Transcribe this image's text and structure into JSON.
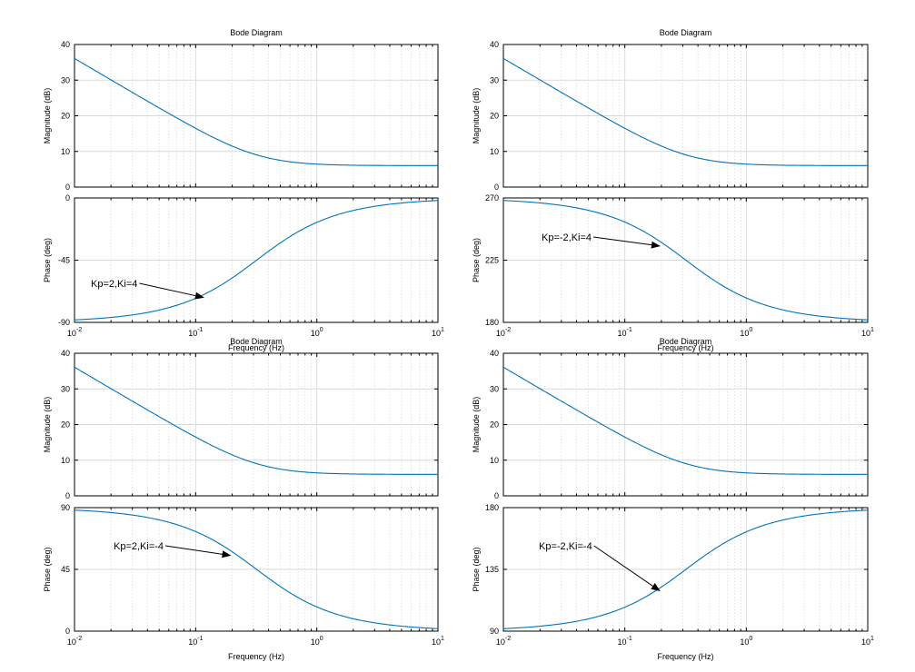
{
  "colors": {
    "curve": "#0072BD",
    "grid": "#d9d9d9",
    "axes": "#000000",
    "background": "#ffffff"
  },
  "x_axis": {
    "label": "Frequency  (Hz)",
    "tick_labels": [
      {
        "base": "10",
        "exp": "-2"
      },
      {
        "base": "10",
        "exp": "-1"
      },
      {
        "base": "10",
        "exp": "0"
      },
      {
        "base": "10",
        "exp": "1"
      }
    ]
  },
  "chart_data": [
    {
      "type": "line",
      "title": "Bode Diagram",
      "annotation": "Kp=2,Ki=4",
      "xscale": "log",
      "xlim": [
        0.01,
        10
      ],
      "magnitude": {
        "ylabel": "Magnitude (dB)",
        "ylim": [
          0,
          40
        ],
        "ticks": [
          0,
          10,
          20,
          30,
          40
        ],
        "tick_labels": [
          "0",
          "10",
          "20",
          "30",
          "40"
        ]
      },
      "phase": {
        "ylabel": "Phase (deg)",
        "ylim": [
          -90,
          0
        ],
        "ticks": [
          -90,
          -45,
          0
        ],
        "tick_labels": [
          "-90",
          "-45",
          "0"
        ],
        "kp": 2,
        "ki": 4
      },
      "annotation_target_hz": 0.12
    },
    {
      "type": "line",
      "title": "Bode Diagram",
      "annotation": "Kp=-2,Ki=4",
      "xscale": "log",
      "xlim": [
        0.01,
        10
      ],
      "magnitude": {
        "ylabel": "Magnitude (dB)",
        "ylim": [
          0,
          40
        ],
        "ticks": [
          0,
          10,
          20,
          30,
          40
        ],
        "tick_labels": [
          "0",
          "10",
          "20",
          "30",
          "40"
        ]
      },
      "phase": {
        "ylabel": "Phase (deg)",
        "ylim": [
          180,
          270
        ],
        "ticks": [
          180,
          225,
          270
        ],
        "tick_labels": [
          "180",
          "225",
          "270"
        ],
        "kp": -2,
        "ki": 4
      },
      "annotation_target_hz": 0.2
    },
    {
      "type": "line",
      "title": "Bode Diagram",
      "annotation": "Kp=2,Ki=-4",
      "xscale": "log",
      "xlim": [
        0.01,
        10
      ],
      "magnitude": {
        "ylabel": "Magnitude (dB)",
        "ylim": [
          0,
          40
        ],
        "ticks": [
          0,
          10,
          20,
          30,
          40
        ],
        "tick_labels": [
          "0",
          "10",
          "20",
          "30",
          "40"
        ]
      },
      "phase": {
        "ylabel": "Phase (deg)",
        "ylim": [
          0,
          90
        ],
        "ticks": [
          0,
          45,
          90
        ],
        "tick_labels": [
          "0",
          "45",
          "90"
        ],
        "kp": 2,
        "ki": -4
      },
      "annotation_target_hz": 0.2
    },
    {
      "type": "line",
      "title": "Bode Diagram",
      "annotation": "Kp=-2,Ki=-4",
      "xscale": "log",
      "xlim": [
        0.01,
        10
      ],
      "magnitude": {
        "ylabel": "Magnitude (dB)",
        "ylim": [
          0,
          40
        ],
        "ticks": [
          0,
          10,
          20,
          30,
          40
        ],
        "tick_labels": [
          "0",
          "10",
          "20",
          "30",
          "40"
        ]
      },
      "phase": {
        "ylabel": "Phase (deg)",
        "ylim": [
          90,
          180
        ],
        "ticks": [
          90,
          135,
          180
        ],
        "tick_labels": [
          "90",
          "135",
          "180"
        ],
        "kp": -2,
        "ki": -4
      },
      "annotation_target_hz": 0.2
    }
  ]
}
